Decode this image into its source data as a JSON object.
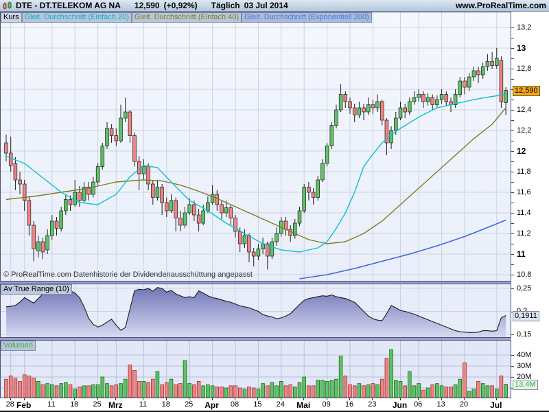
{
  "header": {
    "symbol_title": "DTE - DT.TELEKOM AG NA",
    "last_price": "12,590",
    "change": "(+0,92%)",
    "timeframe": "Täglich",
    "date": "03 Jul 2014",
    "site": "www.ProRealTime.com"
  },
  "labels": {
    "kurs": "Kurs",
    "ma20": "Gleit. Durchschnitt (Einfach 20)",
    "ma40": "Gleit. Durchschnitt (Einfach 40)",
    "ema200": "Gleit. Durchschnitt (Exponentiell 200)"
  },
  "price_panel": {
    "copyright": "© ProRealTime.com  Datenhistorie der Dividendenausschüttung angepasst",
    "current_label": "12,590",
    "axis_labels": [
      {
        "v": 13.2,
        "t": "13,2",
        "b": false
      },
      {
        "v": 13.0,
        "t": "13",
        "b": true
      },
      {
        "v": 12.8,
        "t": "12,8",
        "b": false
      },
      {
        "v": 12.6,
        "t": "12,6",
        "b": false
      },
      {
        "v": 12.4,
        "t": "12,4",
        "b": false
      },
      {
        "v": 12.2,
        "t": "12,2",
        "b": false
      },
      {
        "v": 12.0,
        "t": "12",
        "b": true
      },
      {
        "v": 11.8,
        "t": "11,8",
        "b": false
      },
      {
        "v": 11.6,
        "t": "11,6",
        "b": false
      },
      {
        "v": 11.4,
        "t": "11,4",
        "b": false
      },
      {
        "v": 11.2,
        "t": "11,2",
        "b": false
      },
      {
        "v": 11.0,
        "t": "11",
        "b": true
      },
      {
        "v": 10.8,
        "t": "10,8",
        "b": false
      }
    ]
  },
  "atr_panel": {
    "label": "Av True Range (10)",
    "current_label": "0,1911",
    "axis_labels": [
      {
        "v": 0.25,
        "t": "0,25"
      },
      {
        "v": 0.2,
        "t": "0,2"
      },
      {
        "v": 0.15,
        "t": "0,15"
      }
    ]
  },
  "volume_panel": {
    "label": "Volumen",
    "current_label": "13,4M",
    "axis_labels": [
      {
        "v": 40,
        "t": "40M"
      },
      {
        "v": 30,
        "t": "30M"
      },
      {
        "v": 20,
        "t": "20M"
      },
      {
        "v": 10,
        "t": "10M"
      }
    ]
  },
  "colors": {
    "up": "#5ec463",
    "down": "#ef8383",
    "wick": "#1c1c1c",
    "ma20": "#06c3cf",
    "ma40": "#7c7c21",
    "ema200": "#4067e0",
    "grid": "#ccd2e2",
    "vol_grid": "#b9c1da",
    "vol_up": "#5ec463",
    "vol_up_stroke": "#1e6b22",
    "vol_down": "#ef8383",
    "vol_down_stroke": "#9c3434",
    "atr_line": "#1c1c1c",
    "atr_fill_top": "#6a6fb3",
    "atr_fill_bottom": "#d7daf1",
    "price_badge_bg": "#f3a820"
  },
  "chart_data": {
    "type": "candlestick-with-volume-and-atr",
    "title": "DTE - DT.TELEKOM AG NA, Täglich, 03 Jul 2014",
    "price_axis": {
      "min": 10.73,
      "max": 13.25,
      "label_step": 0.2,
      "minor_step": 0.1
    },
    "atr_axis": {
      "min": 0.14,
      "max": 0.26,
      "labels": [
        0.25,
        0.2,
        0.15
      ]
    },
    "volume_axis": {
      "labels_millions": [
        10,
        20,
        30,
        40
      ]
    },
    "markers": {
      "price": 12.59,
      "atr": 0.1911,
      "volume_millions": 13.4
    },
    "ticks": [
      [
        1,
        "28",
        0
      ],
      [
        4,
        "Feb",
        1
      ],
      [
        10,
        "11",
        0
      ],
      [
        15,
        "18",
        0
      ],
      [
        20,
        "25",
        0
      ],
      [
        24,
        "Mrz",
        1
      ],
      [
        30,
        "11",
        0
      ],
      [
        35,
        "18",
        0
      ],
      [
        40,
        "25",
        0
      ],
      [
        45,
        "Apr",
        1
      ],
      [
        50,
        "08",
        0
      ],
      [
        55,
        "15",
        0
      ],
      [
        60,
        "24",
        0
      ],
      [
        65,
        "Mai",
        1
      ],
      [
        70,
        "09",
        0
      ],
      [
        75,
        "16",
        0
      ],
      [
        80,
        "23",
        0
      ],
      [
        86,
        "Jun",
        1
      ],
      [
        90,
        "06",
        0
      ],
      [
        95,
        "13",
        0
      ],
      [
        100,
        "20",
        0
      ],
      [
        107,
        "Jul",
        1
      ]
    ],
    "candles": [
      [
        12.08,
        12.16,
        11.9,
        11.98,
        18
      ],
      [
        11.98,
        12.14,
        11.8,
        11.86,
        21
      ],
      [
        11.88,
        11.94,
        11.62,
        11.72,
        19
      ],
      [
        11.72,
        11.8,
        11.58,
        11.68,
        16
      ],
      [
        11.68,
        11.72,
        11.42,
        11.52,
        22
      ],
      [
        11.52,
        11.56,
        11.18,
        11.28,
        21
      ],
      [
        11.28,
        11.32,
        10.93,
        11.05,
        19
      ],
      [
        11.03,
        11.18,
        10.97,
        11.12,
        16
      ],
      [
        11.12,
        11.16,
        10.95,
        11.02,
        13
      ],
      [
        11.04,
        11.24,
        11.0,
        11.18,
        14
      ],
      [
        11.18,
        11.38,
        11.14,
        11.32,
        13
      ],
      [
        11.32,
        11.36,
        11.18,
        11.25,
        12
      ],
      [
        11.25,
        11.46,
        11.22,
        11.42,
        14
      ],
      [
        11.42,
        11.58,
        11.38,
        11.53,
        15
      ],
      [
        11.53,
        11.57,
        11.42,
        11.48,
        13
      ],
      [
        11.48,
        11.72,
        11.46,
        11.6,
        9
      ],
      [
        11.6,
        11.66,
        11.46,
        11.52,
        11
      ],
      [
        11.52,
        11.7,
        11.5,
        11.65,
        12
      ],
      [
        11.65,
        11.7,
        11.52,
        11.58,
        12
      ],
      [
        11.58,
        11.75,
        11.55,
        11.7,
        13
      ],
      [
        11.7,
        11.88,
        11.67,
        11.85,
        13
      ],
      [
        11.85,
        12.08,
        11.82,
        12.05,
        20
      ],
      [
        12.05,
        12.28,
        12.02,
        12.22,
        14
      ],
      [
        12.22,
        12.26,
        12.08,
        12.15,
        12
      ],
      [
        12.15,
        12.22,
        12.05,
        12.1,
        13
      ],
      [
        12.1,
        12.45,
        12.08,
        12.32,
        14
      ],
      [
        12.32,
        12.52,
        12.28,
        12.38,
        18
      ],
      [
        12.38,
        12.4,
        12.08,
        12.15,
        31
      ],
      [
        12.15,
        12.18,
        11.85,
        11.9,
        26
      ],
      [
        11.9,
        11.95,
        11.62,
        11.78,
        16
      ],
      [
        11.78,
        11.92,
        11.72,
        11.85,
        16
      ],
      [
        11.85,
        11.88,
        11.62,
        11.68,
        15
      ],
      [
        11.68,
        11.72,
        11.48,
        11.55,
        18
      ],
      [
        11.55,
        11.72,
        11.52,
        11.65,
        25
      ],
      [
        11.65,
        11.68,
        11.38,
        11.5,
        13
      ],
      [
        11.5,
        11.55,
        11.36,
        11.42,
        15
      ],
      [
        11.42,
        11.58,
        11.4,
        11.52,
        18
      ],
      [
        11.52,
        11.55,
        11.22,
        11.35,
        13
      ],
      [
        11.35,
        11.42,
        11.22,
        11.28,
        14
      ],
      [
        11.28,
        11.46,
        11.25,
        11.4,
        35
      ],
      [
        11.4,
        11.54,
        11.38,
        11.48,
        14
      ],
      [
        11.48,
        11.52,
        11.32,
        11.38,
        13
      ],
      [
        11.38,
        11.44,
        11.22,
        11.3,
        16
      ],
      [
        11.3,
        11.48,
        11.28,
        11.42,
        12
      ],
      [
        11.42,
        11.56,
        11.4,
        11.5,
        13
      ],
      [
        11.5,
        11.67,
        11.48,
        11.58,
        12
      ],
      [
        11.58,
        11.62,
        11.42,
        11.48,
        11
      ],
      [
        11.48,
        11.52,
        11.34,
        11.4,
        11
      ],
      [
        11.4,
        11.52,
        11.36,
        11.45,
        10
      ],
      [
        11.45,
        11.48,
        11.28,
        11.35,
        12
      ],
      [
        11.35,
        11.38,
        11.16,
        11.22,
        12
      ],
      [
        11.22,
        11.26,
        11.02,
        11.1,
        10
      ],
      [
        11.1,
        11.24,
        11.06,
        11.18,
        9
      ],
      [
        11.18,
        11.2,
        10.92,
        11.02,
        11
      ],
      [
        11.02,
        11.06,
        10.88,
        10.98,
        10
      ],
      [
        10.98,
        11.1,
        10.94,
        11.05,
        9
      ],
      [
        11.05,
        11.16,
        11.0,
        11.1,
        14
      ],
      [
        11.1,
        11.12,
        10.85,
        10.98,
        12
      ],
      [
        10.98,
        11.16,
        10.95,
        11.12,
        15
      ],
      [
        11.12,
        11.26,
        11.08,
        11.2,
        12
      ],
      [
        11.2,
        11.36,
        11.17,
        11.32,
        16
      ],
      [
        11.32,
        11.36,
        11.18,
        11.24,
        12
      ],
      [
        11.24,
        11.28,
        11.12,
        11.18,
        13
      ],
      [
        11.18,
        11.34,
        11.15,
        11.3,
        11
      ],
      [
        11.3,
        11.46,
        11.27,
        11.42,
        15
      ],
      [
        11.42,
        11.68,
        11.4,
        11.65,
        20
      ],
      [
        11.65,
        11.7,
        11.52,
        11.6,
        12
      ],
      [
        11.6,
        11.64,
        11.48,
        11.55,
        12
      ],
      [
        11.55,
        11.76,
        11.52,
        11.72,
        17
      ],
      [
        11.72,
        11.92,
        11.7,
        11.88,
        17
      ],
      [
        11.88,
        12.08,
        11.85,
        12.05,
        16
      ],
      [
        12.05,
        12.28,
        12.02,
        12.25,
        17
      ],
      [
        12.25,
        12.45,
        12.22,
        12.4,
        18
      ],
      [
        12.4,
        12.65,
        12.38,
        12.55,
        39
      ],
      [
        12.55,
        12.58,
        12.42,
        12.48,
        21
      ],
      [
        12.48,
        12.52,
        12.36,
        12.42,
        13
      ],
      [
        12.42,
        12.46,
        12.28,
        12.35,
        12
      ],
      [
        12.35,
        12.48,
        12.32,
        12.42,
        14
      ],
      [
        12.42,
        12.46,
        12.3,
        12.38,
        12
      ],
      [
        12.38,
        12.52,
        12.35,
        12.45,
        13
      ],
      [
        12.45,
        12.5,
        12.36,
        12.42,
        14
      ],
      [
        12.42,
        12.55,
        12.38,
        12.48,
        13
      ],
      [
        12.48,
        12.5,
        12.25,
        12.3,
        18
      ],
      [
        12.3,
        12.32,
        11.96,
        12.08,
        37
      ],
      [
        12.08,
        12.24,
        12.02,
        12.2,
        45
      ],
      [
        12.2,
        12.38,
        12.16,
        12.32,
        17
      ],
      [
        12.32,
        12.48,
        12.3,
        12.42,
        16
      ],
      [
        12.42,
        12.46,
        12.32,
        12.38,
        12
      ],
      [
        12.38,
        12.52,
        12.35,
        12.48,
        25
      ],
      [
        12.48,
        12.58,
        12.45,
        12.52,
        12
      ],
      [
        12.52,
        12.6,
        12.48,
        12.55,
        14
      ],
      [
        12.55,
        12.58,
        12.42,
        12.48,
        8
      ],
      [
        12.48,
        12.56,
        12.44,
        12.52,
        10
      ],
      [
        12.52,
        12.55,
        12.4,
        12.45,
        13
      ],
      [
        12.45,
        12.54,
        12.42,
        12.5,
        14
      ],
      [
        12.5,
        12.6,
        12.46,
        12.55,
        12
      ],
      [
        12.55,
        12.58,
        12.44,
        12.48,
        11
      ],
      [
        12.48,
        12.52,
        12.38,
        12.45,
        11
      ],
      [
        12.45,
        12.6,
        12.42,
        12.55,
        13
      ],
      [
        12.55,
        12.72,
        12.52,
        12.68,
        18
      ],
      [
        12.68,
        12.72,
        12.55,
        12.62,
        33
      ],
      [
        12.62,
        12.76,
        12.58,
        12.72,
        7
      ],
      [
        12.72,
        12.82,
        12.68,
        12.78,
        9
      ],
      [
        12.78,
        12.82,
        12.66,
        12.74,
        16
      ],
      [
        12.74,
        12.86,
        12.7,
        12.82,
        14
      ],
      [
        12.82,
        12.94,
        12.78,
        12.87,
        12
      ],
      [
        12.87,
        12.96,
        12.8,
        12.83,
        12
      ],
      [
        12.83,
        13.0,
        12.8,
        12.9,
        9
      ],
      [
        12.88,
        12.92,
        12.42,
        12.48,
        21
      ],
      [
        12.47,
        12.62,
        12.35,
        12.59,
        13.4
      ]
    ],
    "ma20": [
      [
        0,
        11.95
      ],
      [
        4,
        11.88
      ],
      [
        8,
        11.74
      ],
      [
        12,
        11.6
      ],
      [
        16,
        11.5
      ],
      [
        20,
        11.48
      ],
      [
        24,
        11.58
      ],
      [
        27,
        11.75
      ],
      [
        30,
        11.86
      ],
      [
        33,
        11.84
      ],
      [
        36,
        11.7
      ],
      [
        40,
        11.52
      ],
      [
        44,
        11.42
      ],
      [
        48,
        11.3
      ],
      [
        52,
        11.2
      ],
      [
        56,
        11.1
      ],
      [
        60,
        11.04
      ],
      [
        64,
        11.02
      ],
      [
        68,
        11.06
      ],
      [
        70,
        11.12
      ],
      [
        72,
        11.25
      ],
      [
        74,
        11.4
      ],
      [
        76,
        11.6
      ],
      [
        78,
        11.85
      ],
      [
        80,
        11.97
      ],
      [
        82,
        12.08
      ],
      [
        84,
        12.16
      ],
      [
        86,
        12.22
      ],
      [
        90,
        12.33
      ],
      [
        94,
        12.42
      ],
      [
        98,
        12.46
      ],
      [
        102,
        12.5
      ],
      [
        106,
        12.53
      ],
      [
        109,
        12.55
      ]
    ],
    "ma40": [
      [
        0,
        11.53
      ],
      [
        6,
        11.56
      ],
      [
        12,
        11.6
      ],
      [
        18,
        11.64
      ],
      [
        24,
        11.7
      ],
      [
        30,
        11.72
      ],
      [
        34,
        11.71
      ],
      [
        38,
        11.67
      ],
      [
        42,
        11.61
      ],
      [
        46,
        11.54
      ],
      [
        50,
        11.46
      ],
      [
        54,
        11.38
      ],
      [
        58,
        11.3
      ],
      [
        62,
        11.22
      ],
      [
        66,
        11.14
      ],
      [
        70,
        11.1
      ],
      [
        74,
        11.12
      ],
      [
        78,
        11.2
      ],
      [
        82,
        11.32
      ],
      [
        86,
        11.48
      ],
      [
        90,
        11.64
      ],
      [
        94,
        11.8
      ],
      [
        98,
        11.96
      ],
      [
        102,
        12.12
      ],
      [
        106,
        12.26
      ],
      [
        109,
        12.42
      ]
    ],
    "ema200": [
      [
        64,
        10.76
      ],
      [
        70,
        10.8
      ],
      [
        76,
        10.86
      ],
      [
        82,
        10.93
      ],
      [
        88,
        11.0
      ],
      [
        94,
        11.08
      ],
      [
        100,
        11.17
      ],
      [
        104,
        11.24
      ],
      [
        109,
        11.33
      ]
    ],
    "atr": [
      0.21,
      0.211,
      0.213,
      0.22,
      0.23,
      0.224,
      0.218,
      0.228,
      0.238,
      0.246,
      0.254,
      0.253,
      0.251,
      0.248,
      0.245,
      0.24,
      0.23,
      0.21,
      0.185,
      0.172,
      0.166,
      0.17,
      0.177,
      0.183,
      0.17,
      0.159,
      0.165,
      0.205,
      0.245,
      0.248,
      0.247,
      0.25,
      0.244,
      0.252,
      0.25,
      0.242,
      0.246,
      0.238,
      0.234,
      0.23,
      0.232,
      0.23,
      0.245,
      0.24,
      0.234,
      0.23,
      0.228,
      0.225,
      0.222,
      0.22,
      0.216,
      0.212,
      0.21,
      0.208,
      0.204,
      0.2,
      0.193,
      0.19,
      0.188,
      0.184,
      0.186,
      0.19,
      0.195,
      0.205,
      0.215,
      0.224,
      0.228,
      0.23,
      0.232,
      0.234,
      0.233,
      0.236,
      0.232,
      0.23,
      0.228,
      0.224,
      0.22,
      0.21,
      0.2,
      0.19,
      0.184,
      0.181,
      0.18,
      0.195,
      0.213,
      0.208,
      0.202,
      0.2,
      0.197,
      0.194,
      0.19,
      0.186,
      0.182,
      0.178,
      0.174,
      0.17,
      0.166,
      0.162,
      0.158,
      0.156,
      0.155,
      0.154,
      0.154,
      0.155,
      0.158,
      0.158,
      0.157,
      0.158,
      0.186,
      0.1911
    ]
  }
}
